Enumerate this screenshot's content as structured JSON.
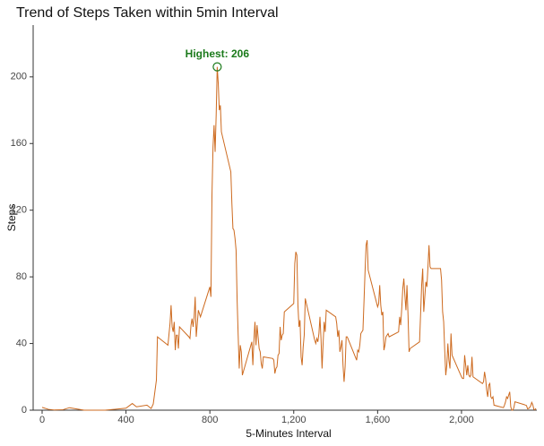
{
  "chart_data": {
    "type": "line",
    "title": "Trend of Steps Taken within 5min Interval",
    "x_label": "5-Minutes Interval",
    "y_label": "Steps",
    "xlim": [
      0,
      2355
    ],
    "ylim": [
      0,
      230
    ],
    "xticks": [
      0,
      400,
      800,
      {
        "value": 1200,
        "label": "1,200"
      },
      {
        "value": 1600,
        "label": "1,600"
      },
      {
        "value": 2000,
        "label": "2,000"
      }
    ],
    "yticks": [
      0,
      40,
      80,
      120,
      160,
      200
    ],
    "x": [
      0,
      30,
      60,
      100,
      130,
      200,
      300,
      400,
      430,
      450,
      500,
      520,
      530,
      545,
      550,
      600,
      610,
      615,
      620,
      625,
      630,
      635,
      640,
      645,
      650,
      655,
      700,
      705,
      710,
      715,
      720,
      725,
      730,
      735,
      740,
      745,
      750,
      755,
      800,
      805,
      810,
      815,
      820,
      825,
      830,
      835,
      840,
      845,
      850,
      855,
      900,
      905,
      910,
      915,
      920,
      925,
      930,
      935,
      940,
      945,
      950,
      955,
      1000,
      1005,
      1010,
      1015,
      1020,
      1025,
      1030,
      1035,
      1040,
      1045,
      1050,
      1055,
      1100,
      1105,
      1110,
      1115,
      1120,
      1125,
      1130,
      1135,
      1140,
      1145,
      1150,
      1155,
      1200,
      1205,
      1210,
      1215,
      1220,
      1225,
      1230,
      1235,
      1240,
      1245,
      1250,
      1255,
      1300,
      1305,
      1310,
      1315,
      1320,
      1325,
      1330,
      1335,
      1340,
      1345,
      1350,
      1355,
      1400,
      1405,
      1410,
      1415,
      1420,
      1425,
      1430,
      1435,
      1440,
      1445,
      1450,
      1455,
      1500,
      1505,
      1510,
      1515,
      1520,
      1525,
      1530,
      1535,
      1540,
      1545,
      1550,
      1555,
      1600,
      1605,
      1610,
      1615,
      1620,
      1625,
      1630,
      1635,
      1640,
      1645,
      1650,
      1655,
      1700,
      1705,
      1710,
      1715,
      1720,
      1725,
      1730,
      1735,
      1740,
      1745,
      1750,
      1755,
      1800,
      1805,
      1810,
      1815,
      1820,
      1825,
      1830,
      1835,
      1840,
      1845,
      1850,
      1855,
      1900,
      1905,
      1910,
      1915,
      1920,
      1925,
      1930,
      1935,
      1940,
      1945,
      1950,
      1955,
      2000,
      2005,
      2010,
      2015,
      2020,
      2025,
      2030,
      2035,
      2040,
      2045,
      2050,
      2055,
      2100,
      2105,
      2110,
      2115,
      2120,
      2125,
      2130,
      2135,
      2140,
      2145,
      2150,
      2155,
      2200,
      2205,
      2210,
      2215,
      2220,
      2225,
      2230,
      2235,
      2240,
      2245,
      2250,
      2255,
      2300,
      2305,
      2310,
      2315,
      2320,
      2325,
      2330,
      2335,
      2340,
      2345,
      2350,
      2355
    ],
    "series": [
      {
        "name": "Steps",
        "color": "#cd6a1f",
        "values": [
          1.7,
          0.5,
          0.1,
          0.3,
          1.5,
          0,
          0,
          1.2,
          4,
          2,
          3,
          1,
          3.7,
          18,
          44,
          39,
          52,
          63,
          50,
          47,
          53,
          36,
          45,
          45,
          37,
          50,
          44,
          43,
          51,
          55,
          50,
          56,
          68,
          44,
          52,
          60,
          58,
          56,
          74,
          68,
          129,
          158,
          171,
          155,
          177,
          206,
          196,
          180,
          183,
          167,
          143,
          124,
          109,
          108,
          103,
          96,
          66,
          45,
          25,
          39,
          35,
          21,
          41,
          27,
          42,
          53,
          39,
          51,
          44,
          37,
          35,
          28,
          25,
          32,
          31,
          30,
          22,
          25,
          26,
          33,
          34,
          50,
          42,
          45,
          46,
          59,
          64,
          88,
          95,
          93,
          63,
          50,
          54,
          32,
          27,
          38,
          45,
          67,
          42,
          40,
          43,
          41,
          46,
          56,
          43,
          25,
          40,
          53,
          47,
          60,
          56,
          52,
          44,
          48,
          35,
          38,
          42,
          27,
          17,
          26,
          44,
          44,
          30,
          36,
          35,
          39,
          46,
          47,
          48,
          65,
          83,
          99,
          102,
          84,
          62,
          64,
          75,
          63,
          57,
          59,
          36,
          39,
          44,
          45,
          46,
          44,
          47,
          56,
          51,
          61,
          73,
          79,
          69,
          60,
          75,
          57,
          35,
          37,
          41,
          58,
          75,
          85,
          59,
          68,
          77,
          74,
          86,
          99,
          86,
          85,
          85,
          78,
          59,
          53,
          36,
          21,
          27,
          40,
          30,
          25,
          46,
          33,
          20,
          19,
          19,
          33,
          27,
          21,
          27,
          21,
          20,
          21,
          32,
          20,
          16,
          17,
          23,
          19,
          12,
          8,
          15,
          16,
          8,
          7,
          8,
          3,
          1.5,
          3,
          5,
          8,
          7,
          9,
          11,
          2,
          0,
          0.1,
          1.6,
          5,
          3.3,
          3,
          2.8,
          0.8,
          1,
          1.6,
          2.6,
          4.7,
          3.3,
          0.6,
          0.2,
          1.1
        ]
      }
    ],
    "annotation": {
      "text": "Highest: 206",
      "x": 835,
      "y": 206,
      "color": "#1b7a1b"
    }
  }
}
